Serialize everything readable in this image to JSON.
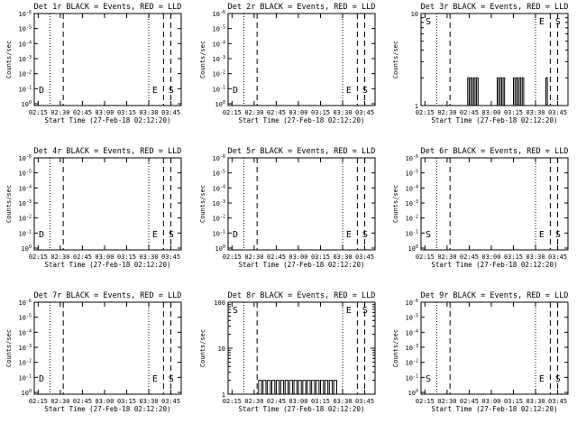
{
  "chart_data": [
    {
      "type": "line",
      "title": "Det 1r BLACK = Events, RED = LLD",
      "ylabel": "Counts/sec",
      "xlabel": "Start Time (27-Feb-18 02:12:20)",
      "x_ticks": [
        "02:15",
        "02:30",
        "02:45",
        "03:00",
        "03:15",
        "03:30",
        "03:45"
      ],
      "y_scale": "log",
      "y_ticks": [
        "10^0",
        "10^-1",
        "10^-2",
        "10^-3",
        "10^-4",
        "10^-5",
        "10^-6"
      ],
      "markers": [
        {
          "label": "D",
          "x": "02:16"
        },
        {
          "label": "E",
          "x": "03:33"
        },
        {
          "label": "S",
          "x": "03:44"
        }
      ],
      "series": []
    },
    {
      "type": "line",
      "title": "Det 2r BLACK = Events, RED = LLD",
      "ylabel": "Counts/sec",
      "xlabel": "Start Time (27-Feb-18 02:12:20)",
      "x_ticks": [
        "02:15",
        "02:30",
        "02:45",
        "03:00",
        "03:15",
        "03:30",
        "03:45"
      ],
      "y_scale": "log",
      "y_ticks": [
        "10^0",
        "10^-1",
        "10^-2",
        "10^-3",
        "10^-4",
        "10^-5",
        "10^-6"
      ],
      "markers": [
        {
          "label": "D",
          "x": "02:16"
        },
        {
          "label": "E",
          "x": "03:33"
        },
        {
          "label": "S",
          "x": "03:44"
        }
      ],
      "series": []
    },
    {
      "type": "line",
      "title": "Det 3r BLACK = Events, RED = LLD",
      "ylabel": "Counts/sec",
      "xlabel": "Start Time (27-Feb-18 02:12:20)",
      "x_ticks": [
        "02:15",
        "02:30",
        "02:45",
        "03:00",
        "03:15",
        "03:30",
        "03:45"
      ],
      "y_scale": "log",
      "y_ticks": [
        "1",
        "10"
      ],
      "markers": [
        {
          "label": "S",
          "x": "02:16"
        },
        {
          "label": "E",
          "x": "03:33"
        },
        {
          "label": "S",
          "x": "03:44"
        }
      ],
      "series": [
        {
          "values": [
            {
              "x": "02:44",
              "y": 2
            },
            {
              "x": "02:45",
              "y": 1
            },
            {
              "x": "02:46",
              "y": 2
            },
            {
              "x": "02:47",
              "y": 1
            },
            {
              "x": "02:48",
              "y": 2
            },
            {
              "x": "02:49",
              "y": 1
            },
            {
              "x": "02:50",
              "y": 2
            },
            {
              "x": "02:51",
              "y": 1
            },
            {
              "x": "03:04",
              "y": 2
            },
            {
              "x": "03:05",
              "y": 1
            },
            {
              "x": "03:06",
              "y": 2
            },
            {
              "x": "03:07",
              "y": 1
            },
            {
              "x": "03:08",
              "y": 2
            },
            {
              "x": "03:09",
              "y": 1
            },
            {
              "x": "03:15",
              "y": 2
            },
            {
              "x": "03:16",
              "y": 1
            },
            {
              "x": "03:17",
              "y": 2
            },
            {
              "x": "03:18",
              "y": 1
            },
            {
              "x": "03:19",
              "y": 2
            },
            {
              "x": "03:20",
              "y": 1
            },
            {
              "x": "03:21",
              "y": 2
            },
            {
              "x": "03:22",
              "y": 1
            },
            {
              "x": "03:37",
              "y": 2
            },
            {
              "x": "03:38",
              "y": 1
            }
          ]
        }
      ]
    },
    {
      "type": "line",
      "title": "Det 4r BLACK = Events, RED = LLD",
      "ylabel": "Counts/sec",
      "xlabel": "Start Time (27-Feb-18 02:12:20)",
      "x_ticks": [
        "02:15",
        "02:30",
        "02:45",
        "03:00",
        "03:15",
        "03:30",
        "03:45"
      ],
      "y_scale": "log",
      "y_ticks": [
        "10^0",
        "10^-1",
        "10^-2",
        "10^-3",
        "10^-4",
        "10^-5",
        "10^-6"
      ],
      "markers": [
        {
          "label": "D",
          "x": "02:16"
        },
        {
          "label": "E",
          "x": "03:33"
        },
        {
          "label": "S",
          "x": "03:44"
        }
      ],
      "series": []
    },
    {
      "type": "line",
      "title": "Det 5r BLACK = Events, RED = LLD",
      "ylabel": "Counts/sec",
      "xlabel": "Start Time (27-Feb-18 02:12:20)",
      "x_ticks": [
        "02:15",
        "02:30",
        "02:45",
        "03:00",
        "03:15",
        "03:30",
        "03:45"
      ],
      "y_scale": "log",
      "y_ticks": [
        "10^0",
        "10^-1",
        "10^-2",
        "10^-3",
        "10^-4",
        "10^-5",
        "10^-6"
      ],
      "markers": [
        {
          "label": "D",
          "x": "02:16"
        },
        {
          "label": "E",
          "x": "03:33"
        },
        {
          "label": "S",
          "x": "03:44"
        }
      ],
      "series": []
    },
    {
      "type": "line",
      "title": "Det 6r BLACK = Events, RED = LLD",
      "ylabel": "Counts/sec",
      "xlabel": "Start Time (27-Feb-18 02:12:20)",
      "x_ticks": [
        "02:15",
        "02:30",
        "02:45",
        "03:00",
        "03:15",
        "03:30",
        "03:45"
      ],
      "y_scale": "log",
      "y_ticks": [
        "10^0",
        "10^-1",
        "10^-2",
        "10^-3",
        "10^-4",
        "10^-5",
        "10^-6"
      ],
      "markers": [
        {
          "label": "S",
          "x": "02:16"
        },
        {
          "label": "E",
          "x": "03:33"
        },
        {
          "label": "S",
          "x": "03:44"
        }
      ],
      "series": []
    },
    {
      "type": "line",
      "title": "Det 7r BLACK = Events, RED = LLD",
      "ylabel": "Counts/sec",
      "xlabel": "Start Time (27-Feb-18 02:12:20)",
      "x_ticks": [
        "02:15",
        "02:30",
        "02:45",
        "03:00",
        "03:15",
        "03:30",
        "03:45"
      ],
      "y_scale": "log",
      "y_ticks": [
        "10^0",
        "10^-1",
        "10^-2",
        "10^-3",
        "10^-4",
        "10^-5",
        "10^-6"
      ],
      "markers": [
        {
          "label": "D",
          "x": "02:16"
        },
        {
          "label": "E",
          "x": "03:33"
        },
        {
          "label": "S",
          "x": "03:44"
        }
      ],
      "series": []
    },
    {
      "type": "line",
      "title": "Det 8r BLACK = Events, RED = LLD",
      "ylabel": "Counts/sec",
      "xlabel": "Start Time (27-Feb-18 02:12:20)",
      "x_ticks": [
        "02:15",
        "02:30",
        "02:45",
        "03:00",
        "03:15",
        "03:30",
        "03:45"
      ],
      "y_scale": "log",
      "y_ticks": [
        "1",
        "10",
        "100"
      ],
      "markers": [
        {
          "label": "S",
          "x": "02:16"
        },
        {
          "label": "E",
          "x": "03:33"
        },
        {
          "label": "S",
          "x": "03:44"
        }
      ],
      "series": [
        {
          "values": [
            {
              "x": "02:33",
              "y": 2
            },
            {
              "x": "02:35",
              "y": 1
            },
            {
              "x": "02:36",
              "y": 2
            },
            {
              "x": "02:38",
              "y": 1
            },
            {
              "x": "02:39",
              "y": 2
            },
            {
              "x": "02:41",
              "y": 1
            },
            {
              "x": "02:42",
              "y": 2
            },
            {
              "x": "02:44",
              "y": 1
            },
            {
              "x": "02:45",
              "y": 2
            },
            {
              "x": "02:47",
              "y": 1
            },
            {
              "x": "02:48",
              "y": 2
            },
            {
              "x": "02:50",
              "y": 1
            },
            {
              "x": "02:51",
              "y": 2
            },
            {
              "x": "02:53",
              "y": 1
            },
            {
              "x": "02:54",
              "y": 2
            },
            {
              "x": "02:56",
              "y": 1
            },
            {
              "x": "02:57",
              "y": 2
            },
            {
              "x": "02:59",
              "y": 1
            },
            {
              "x": "03:00",
              "y": 2
            },
            {
              "x": "03:02",
              "y": 1
            },
            {
              "x": "03:03",
              "y": 2
            },
            {
              "x": "03:05",
              "y": 1
            },
            {
              "x": "03:06",
              "y": 2
            },
            {
              "x": "03:08",
              "y": 1
            },
            {
              "x": "03:09",
              "y": 2
            },
            {
              "x": "03:11",
              "y": 1
            },
            {
              "x": "03:12",
              "y": 2
            },
            {
              "x": "03:14",
              "y": 1
            },
            {
              "x": "03:15",
              "y": 2
            },
            {
              "x": "03:17",
              "y": 1
            },
            {
              "x": "03:18",
              "y": 2
            },
            {
              "x": "03:20",
              "y": 1
            },
            {
              "x": "03:21",
              "y": 2
            },
            {
              "x": "03:23",
              "y": 1
            },
            {
              "x": "03:24",
              "y": 2
            },
            {
              "x": "03:26",
              "y": 1
            }
          ]
        }
      ]
    },
    {
      "type": "line",
      "title": "Det 9r BLACK = Events, RED = LLD",
      "ylabel": "Counts/sec",
      "xlabel": "Start Time (27-Feb-18 02:12:20)",
      "x_ticks": [
        "02:15",
        "02:30",
        "02:45",
        "03:00",
        "03:15",
        "03:30",
        "03:45"
      ],
      "y_scale": "log",
      "y_ticks": [
        "10^0",
        "10^-1",
        "10^-2",
        "10^-3",
        "10^-4",
        "10^-5",
        "10^-6"
      ],
      "markers": [
        {
          "label": "S",
          "x": "02:16"
        },
        {
          "label": "E",
          "x": "03:33"
        },
        {
          "label": "S",
          "x": "03:44"
        }
      ],
      "series": []
    }
  ]
}
